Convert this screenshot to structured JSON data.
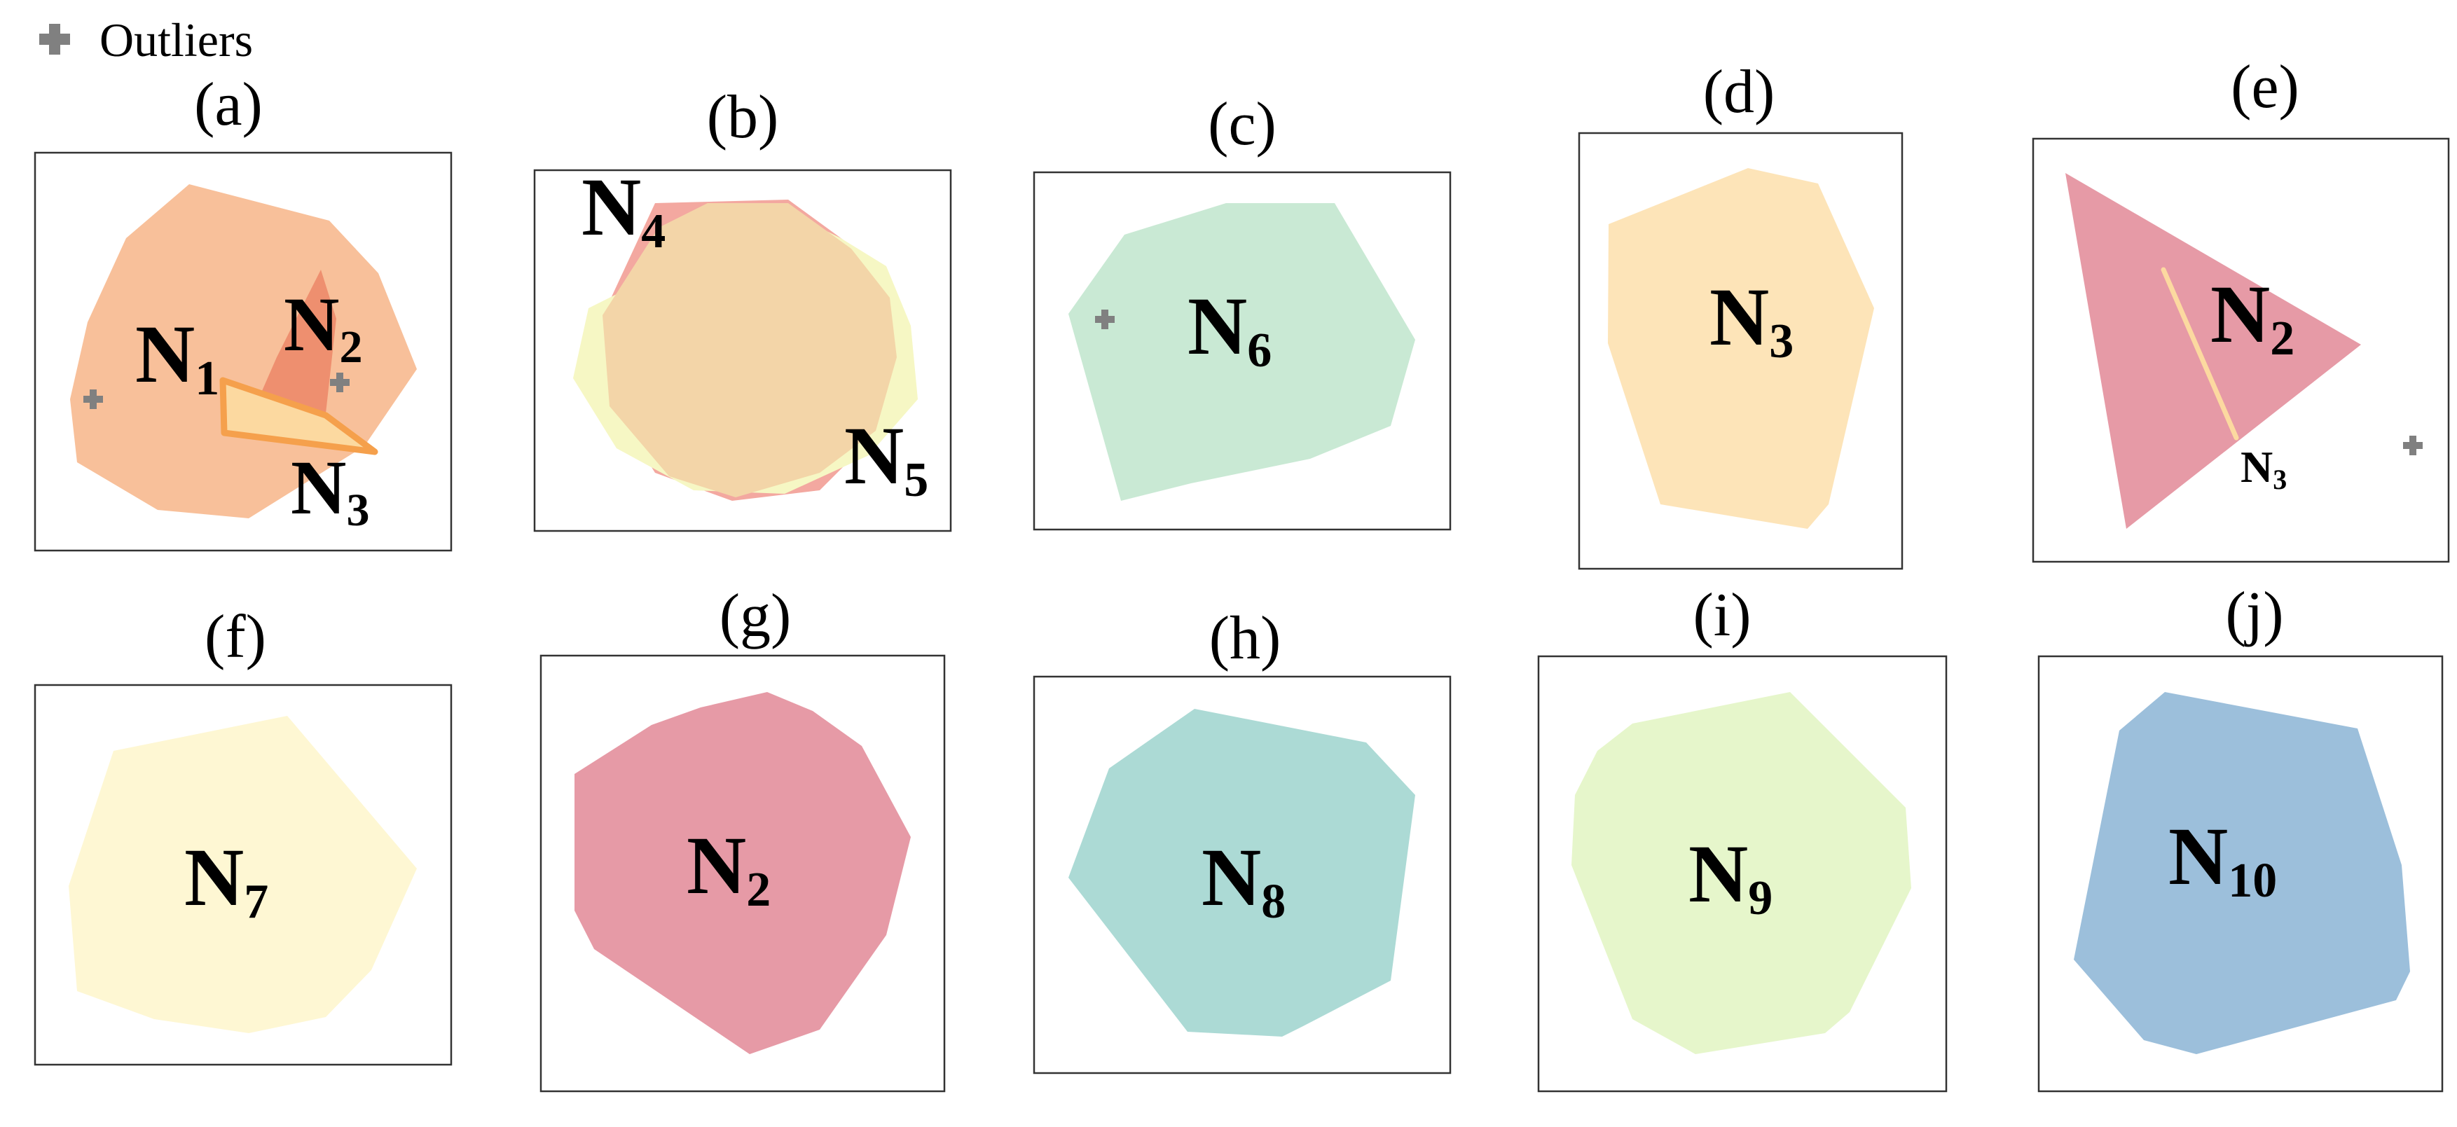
{
  "legend": {
    "outlier_label": "Outliers",
    "marker_icon": "plus-icon",
    "marker_color": "#808080"
  },
  "palette": {
    "n1": "#f8c09a",
    "n2_dark": "#ee8f6f",
    "n3_light": "#fcd9a0",
    "n3_stroke": "#f5a04c",
    "n4": "#f3a8a0",
    "n5": "#f6f7c4",
    "n4_n5_overlap": "#f3d5a8",
    "n6": "#c9e9d4",
    "n3_solo": "#fde4b8",
    "n2_solo": "#e69aa6",
    "n7": "#fef7d3",
    "n8": "#acdad5",
    "n9": "#e6f6cb",
    "n10": "#9cbfdb"
  },
  "panels": [
    {
      "id": "a",
      "title": "(a)",
      "regions": [
        {
          "base": "N",
          "sub": "1"
        },
        {
          "base": "N",
          "sub": "2"
        },
        {
          "base": "N",
          "sub": "3"
        }
      ],
      "outliers": 2
    },
    {
      "id": "b",
      "title": "(b)",
      "regions": [
        {
          "base": "N",
          "sub": "4"
        },
        {
          "base": "N",
          "sub": "5"
        }
      ],
      "outliers": 0
    },
    {
      "id": "c",
      "title": "(c)",
      "regions": [
        {
          "base": "N",
          "sub": "6"
        }
      ],
      "outliers": 1
    },
    {
      "id": "d",
      "title": "(d)",
      "regions": [
        {
          "base": "N",
          "sub": "3"
        }
      ],
      "outliers": 0
    },
    {
      "id": "e",
      "title": "(e)",
      "regions": [
        {
          "base": "N",
          "sub": "2"
        },
        {
          "base": "N",
          "sub": "3"
        }
      ],
      "outliers": 1
    },
    {
      "id": "f",
      "title": "(f)",
      "regions": [
        {
          "base": "N",
          "sub": "7"
        }
      ],
      "outliers": 0
    },
    {
      "id": "g",
      "title": "(g)",
      "regions": [
        {
          "base": "N",
          "sub": "2"
        }
      ],
      "outliers": 0
    },
    {
      "id": "h",
      "title": "(h)",
      "regions": [
        {
          "base": "N",
          "sub": "8"
        }
      ],
      "outliers": 0
    },
    {
      "id": "i",
      "title": "(i)",
      "regions": [
        {
          "base": "N",
          "sub": "9"
        }
      ],
      "outliers": 0
    },
    {
      "id": "j",
      "title": "(j)",
      "regions": [
        {
          "base": "N",
          "sub": "10"
        }
      ],
      "outliers": 0
    }
  ]
}
